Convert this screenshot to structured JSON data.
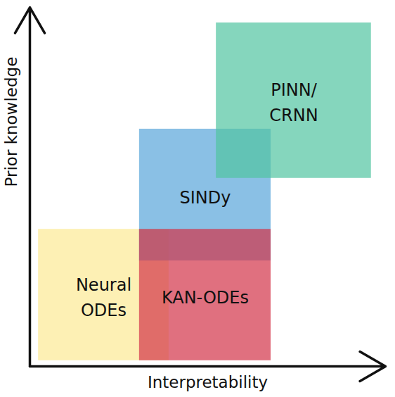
{
  "chart_data": {
    "type": "region",
    "x_label": "Interpretability",
    "y_label": "Prior knowledge",
    "xlim": [
      0,
      10
    ],
    "ylim": [
      0,
      10
    ],
    "tick_labels": false,
    "regions": [
      {
        "name": "Neural\nODEs",
        "x": [
          0.24,
          3.91
        ],
        "y": [
          0.16,
          3.82
        ],
        "color": "#fcea94"
      },
      {
        "name": "SINDy",
        "x": [
          3.08,
          6.78
        ],
        "y": [
          2.94,
          6.61
        ],
        "color": "#58a5da"
      },
      {
        "name": "KAN-ODEs",
        "x": [
          3.08,
          6.78
        ],
        "y": [
          0.16,
          3.82
        ],
        "color": "#d33348"
      },
      {
        "name": "PINN/\nCRNN",
        "x": [
          5.24,
          9.6
        ],
        "y": [
          5.24,
          9.57
        ],
        "color": "#51c4a1"
      }
    ]
  }
}
